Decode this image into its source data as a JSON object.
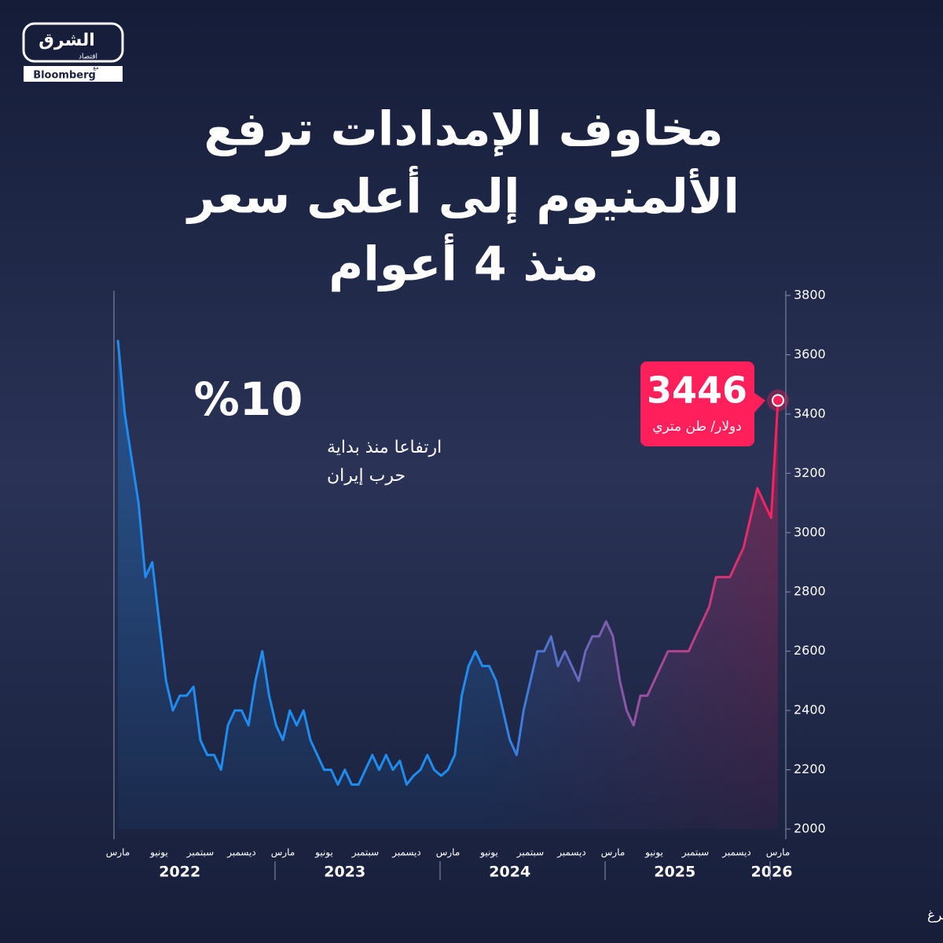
{
  "logo": {
    "name": "الشرق",
    "sub": "اقتصاد",
    "partner_prefix": "مع",
    "partner": "Bloomberg"
  },
  "chart_data": {
    "type": "line",
    "title_lines": [
      "مخاوف الإمدادات ترفع",
      "الألمنيوم إلى أعلى سعر",
      "منذ 4 أعوام"
    ],
    "categories": [
      "مارس",
      null,
      null,
      null,
      null,
      null,
      "يونيو",
      null,
      null,
      null,
      null,
      null,
      "سبتمبر",
      null,
      null,
      null,
      null,
      null,
      "ديسمبر",
      null,
      null,
      null,
      null,
      null,
      "مارس",
      null,
      null,
      null,
      null,
      null,
      "يونيو",
      null,
      null,
      null,
      null,
      null,
      "سبتمبر",
      null,
      null,
      null,
      null,
      null,
      "ديسمبر",
      null,
      null,
      null,
      null,
      null,
      "مارس",
      null,
      null,
      null,
      null,
      null,
      "يونيو",
      null,
      null,
      null,
      null,
      null,
      "سبتمبر",
      null,
      null,
      null,
      null,
      null,
      "ديسمبر",
      null,
      null,
      null,
      null,
      null,
      "مارس",
      null,
      null,
      null,
      null,
      null,
      "يونيو",
      null,
      null,
      null,
      null,
      null,
      "سبتمبر",
      null,
      null,
      null,
      null,
      null,
      "ديسمبر",
      null,
      null,
      null,
      null,
      null,
      "مارس"
    ],
    "values": [
      3650,
      3400,
      3250,
      3100,
      2850,
      2900,
      2700,
      2500,
      2400,
      2450,
      2450,
      2480,
      2300,
      2250,
      2250,
      2200,
      2350,
      2400,
      2400,
      2350,
      2500,
      2600,
      2450,
      2350,
      2300,
      2400,
      2350,
      2400,
      2300,
      2250,
      2200,
      2200,
      2150,
      2200,
      2150,
      2150,
      2200,
      2250,
      2200,
      2250,
      2200,
      2230,
      2150,
      2180,
      2200,
      2250,
      2200,
      2180,
      2200,
      2250,
      2450,
      2550,
      2600,
      2550,
      2550,
      2500,
      2400,
      2300,
      2250,
      2400,
      2500,
      2600,
      2600,
      2650,
      2550,
      2600,
      2550,
      2500,
      2600,
      2650,
      2650,
      2700,
      2650,
      2500,
      2400,
      2350,
      2450,
      2450,
      2500,
      2550,
      2600,
      2600,
      2600,
      2600,
      2650,
      2700,
      2750,
      2850,
      2850,
      2850,
      2900,
      2950,
      3050,
      3150,
      3100,
      3050,
      3446
    ],
    "value_unit": "دولار/ طن متري",
    "years": [
      "2022",
      "2023",
      "2024",
      "2025",
      "2026"
    ],
    "colors": [
      "#1e8cf0",
      "#ff1f5a"
    ],
    "ylim": [
      2000,
      3800
    ],
    "yticks": [
      2000,
      2200,
      2400,
      2600,
      2800,
      3000,
      3200,
      3400,
      3600,
      3800
    ],
    "annotation": {
      "headline": "%10",
      "lines": [
        "ارتفاعا منذ بداية",
        "حرب إيران"
      ]
    },
    "source": "المصدر: بيانات بلومبرغ"
  }
}
